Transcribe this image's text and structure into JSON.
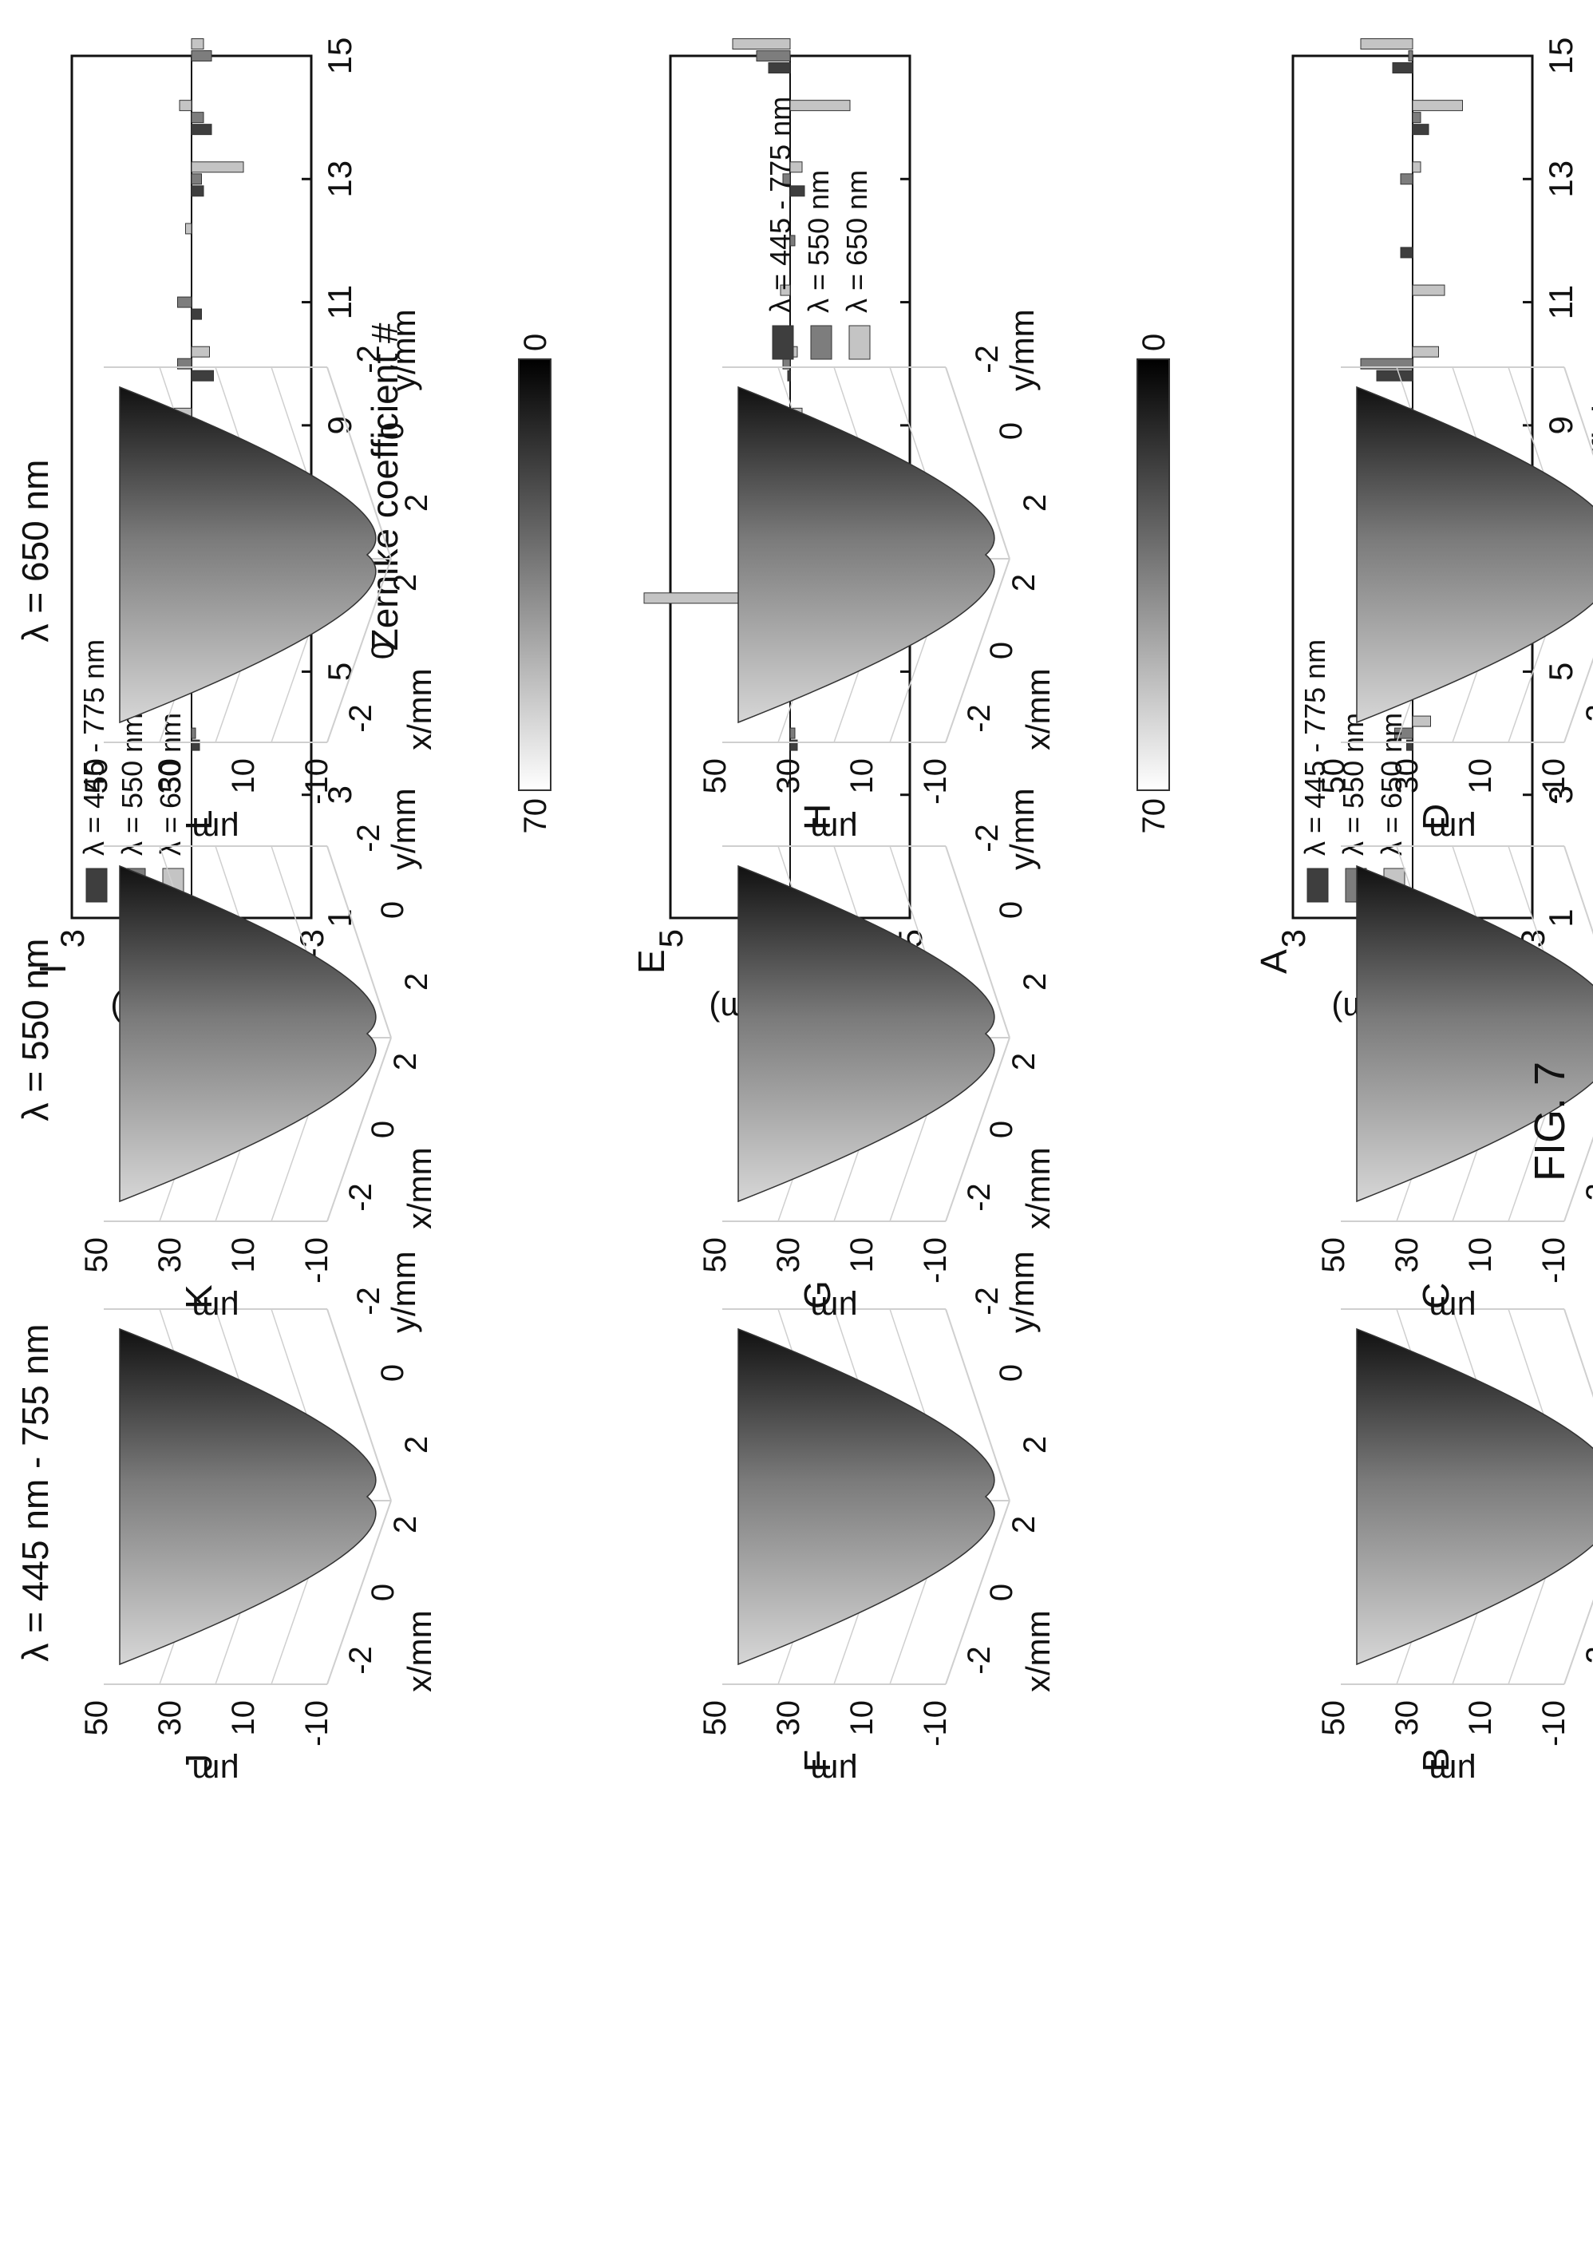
{
  "figure_label": "FIG. 7",
  "colors": {
    "series": [
      "#3e3e3e",
      "#7d7d7d",
      "#c4c4c4"
    ],
    "axis": "#111111",
    "grid": "#cfcfcf"
  },
  "chart_data": [
    {
      "panel": "A",
      "type": "bar",
      "ylabel": "Value (μm)",
      "xlabel": "Zernike coefficient #",
      "ylim": [
        -3,
        3
      ],
      "xlim": [
        1,
        15
      ],
      "yticks": [
        "-3",
        "0",
        "3"
      ],
      "xticks": [
        "1",
        "3",
        "5",
        "7",
        "9",
        "11",
        "13",
        "15"
      ],
      "legend": [
        "λ = 445 - 775 nm",
        "λ = 550 nm",
        "λ = 650 nm"
      ],
      "legend_position": "top-left",
      "series": [
        {
          "name": "λ = 445 - 775 nm",
          "values": [
            0,
            0,
            0,
            0.15,
            0,
            -0.85,
            0,
            0.5,
            -0.2,
            0.9,
            0,
            0.3,
            0,
            -0.4,
            0.5
          ]
        },
        {
          "name": "λ = 550 nm",
          "values": [
            0,
            0,
            0,
            0.45,
            0,
            -0.95,
            0,
            0.45,
            0,
            1.3,
            0,
            0,
            0.3,
            -0.2,
            0.1
          ]
        },
        {
          "name": "λ = 650 nm",
          "values": [
            0,
            0,
            0,
            -0.45,
            0,
            -1.9,
            0.55,
            0.35,
            1.3,
            -0.65,
            -0.8,
            0,
            -0.2,
            -1.25,
            1.3
          ]
        }
      ]
    },
    {
      "panel": "E",
      "type": "bar",
      "ylabel": "Value (μm)",
      "xlabel": "",
      "ylim": [
        -5,
        5
      ],
      "xlim": [
        1,
        15
      ],
      "yticks": [
        "-5",
        "0",
        "5"
      ],
      "xticks": [],
      "legend": [
        "λ = 445 - 775 nm",
        "λ = 550 nm",
        "λ = 650 nm"
      ],
      "legend_position": "bottom-right",
      "series": [
        {
          "name": "λ = 445 - 775 nm",
          "values": [
            0,
            0,
            0,
            -0.3,
            0,
            -0.4,
            0,
            -0.1,
            0.5,
            0.1,
            0,
            0,
            -0.6,
            0,
            0.9
          ]
        },
        {
          "name": "λ = 550 nm",
          "values": [
            0,
            0,
            0,
            -0.2,
            0,
            -0.3,
            0,
            0.2,
            -0.3,
            0.3,
            0,
            -0.2,
            0.3,
            0,
            1.4
          ]
        },
        {
          "name": "λ = 650 nm",
          "values": [
            0,
            0,
            0,
            0,
            0,
            6.1,
            -0.3,
            0.4,
            -0.5,
            -0.3,
            0.4,
            0,
            -0.5,
            -2.5,
            2.4
          ]
        }
      ]
    },
    {
      "panel": "I",
      "type": "bar",
      "ylabel": "Value (μm)",
      "xlabel": "Zernike coefficient #",
      "ylim": [
        -3,
        3
      ],
      "xlim": [
        1,
        15
      ],
      "yticks": [
        "-3",
        "0",
        "3"
      ],
      "xticks": [
        "1",
        "3",
        "5",
        "7",
        "9",
        "11",
        "13",
        "15"
      ],
      "legend": [
        "λ = 445 - 775 nm",
        "λ = 550 nm",
        "λ = 650 nm"
      ],
      "legend_position": "top-right",
      "series": [
        {
          "name": "λ = 445 - 775 nm",
          "values": [
            0,
            0,
            0,
            -0.2,
            0,
            -0.8,
            -0.7,
            -0.25,
            -0.5,
            -0.55,
            -0.25,
            0,
            -0.3,
            -0.5,
            0
          ]
        },
        {
          "name": "λ = 550 nm",
          "values": [
            0,
            0,
            0,
            -0.1,
            0,
            -0.6,
            0.35,
            -0.2,
            0.4,
            0.35,
            0.35,
            0,
            -0.25,
            -0.3,
            -0.5
          ]
        },
        {
          "name": "λ = 650 nm",
          "values": [
            0,
            0,
            0,
            0,
            0,
            -2.3,
            -1.3,
            1.35,
            1.05,
            -0.45,
            0,
            0.15,
            -1.3,
            0.3,
            -0.3
          ]
        }
      ]
    }
  ],
  "surface_panels": {
    "zlabel": "μm",
    "zticks": [
      "-10",
      "10",
      "30",
      "50"
    ],
    "xlabel": "x/mm",
    "ylabel": "y/mm",
    "xticks": [
      "-2",
      "0",
      "2"
    ],
    "yticks": [
      "2",
      "0",
      "-2"
    ],
    "colorbar_max": "70",
    "colorbar_min": "0",
    "columns": [
      {
        "caption": "λ = 445 nm - 755 nm",
        "letters": [
          "B",
          "F",
          "J"
        ]
      },
      {
        "caption": "λ = 550 nm",
        "letters": [
          "C",
          "G",
          "K"
        ]
      },
      {
        "caption": "λ = 650 nm",
        "letters": [
          "D",
          "H",
          "L"
        ]
      }
    ]
  }
}
